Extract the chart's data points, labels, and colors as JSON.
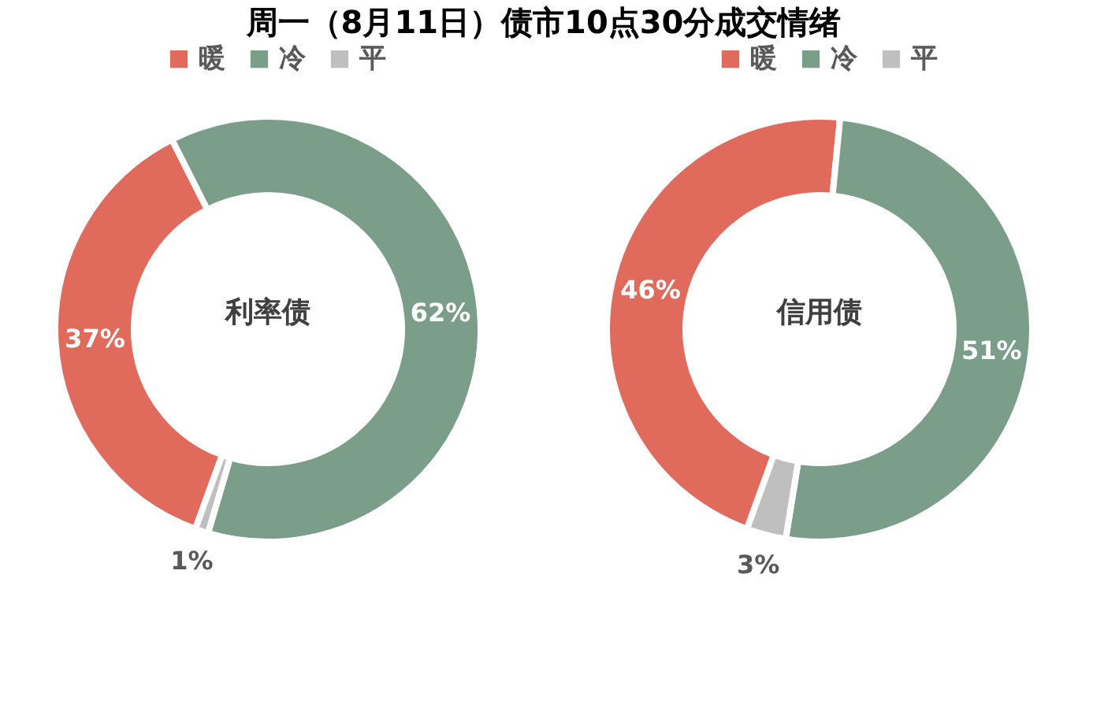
{
  "chart_data": [
    {
      "type": "donut",
      "title": "周一（8月11日）债市10点30分成交情绪",
      "annotations": [
        "利率债"
      ],
      "categories": [
        "暖",
        "冷",
        "平"
      ],
      "values": [
        37,
        62,
        1
      ],
      "colors": [
        "#e06b5d",
        "#7a9e8a",
        "#bfbfbf"
      ],
      "value_labels": [
        "37%",
        "62%",
        "1%"
      ],
      "legend": "top"
    },
    {
      "type": "donut",
      "annotations": [
        "信用债"
      ],
      "categories": [
        "暖",
        "冷",
        "平"
      ],
      "values": [
        46,
        51,
        3
      ],
      "colors": [
        "#e06b5d",
        "#7a9e8a",
        "#bfbfbf"
      ],
      "value_labels": [
        "46%",
        "51%",
        "3%"
      ],
      "legend": "top"
    }
  ]
}
